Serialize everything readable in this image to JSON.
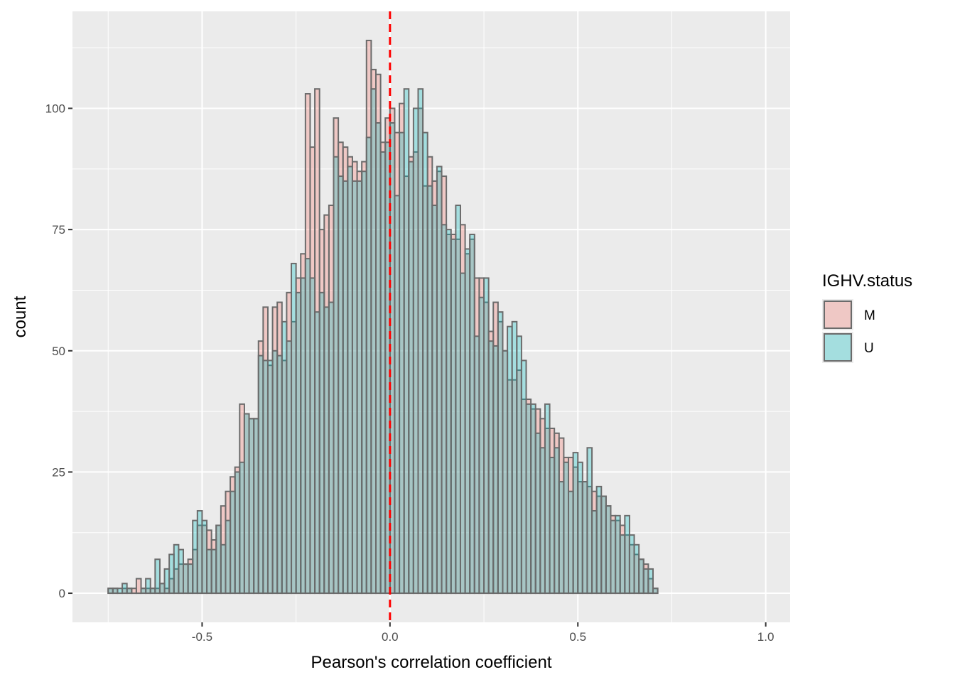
{
  "chart_data": {
    "type": "bar",
    "subtype": "overlapping-histogram",
    "title": "",
    "xlabel": "Pearson's correlation coefficient",
    "ylabel": "count",
    "xlim": [
      -0.845,
      1.065
    ],
    "ylim": [
      -6,
      120
    ],
    "x_ticks": [
      -0.5,
      0.0,
      0.5,
      1.0
    ],
    "x_tick_labels": [
      "-0.5",
      "0.0",
      "0.5",
      "1.0"
    ],
    "y_ticks": [
      0,
      25,
      50,
      75,
      100
    ],
    "y_tick_labels": [
      "0",
      "25",
      "50",
      "75",
      "100"
    ],
    "grid": true,
    "bin_start": -0.75,
    "bin_width": 0.0125,
    "reference_line": {
      "x": 0.0,
      "style": "dashed",
      "color": "#ff0000"
    },
    "legend": {
      "title": "IGHV.status",
      "position": "right",
      "entries": [
        {
          "name": "M",
          "fill": "#f8766d"
        },
        {
          "name": "U",
          "fill": "#00bfc4"
        }
      ]
    },
    "series": [
      {
        "name": "M",
        "fill": "#f8766d",
        "values": [
          1,
          1,
          0,
          1,
          1,
          1,
          3,
          1,
          1,
          1,
          1,
          2,
          1,
          3,
          5,
          6,
          6,
          7,
          9,
          14,
          14,
          13,
          11,
          14,
          18,
          21,
          24,
          26,
          39,
          37,
          36,
          36,
          52,
          59,
          47,
          59,
          60,
          48,
          62,
          56,
          65,
          70,
          103,
          92,
          104,
          75,
          78,
          80,
          98,
          93,
          92,
          90,
          89,
          87,
          89,
          114,
          108,
          107,
          93,
          98,
          100,
          95,
          101,
          86,
          90,
          91,
          100,
          84,
          90,
          85,
          87,
          86,
          74,
          74,
          73,
          76,
          70,
          73,
          65,
          65,
          60,
          54,
          60,
          56,
          50,
          44,
          44,
          46,
          40,
          40,
          38,
          38,
          36,
          34,
          34,
          33,
          32,
          28,
          28,
          26,
          23,
          23,
          22,
          21,
          20,
          20,
          18,
          16,
          15,
          14,
          12,
          10,
          8,
          7,
          6,
          3,
          1
        ]
      },
      {
        "name": "U",
        "fill": "#00bfc4",
        "values": [
          1,
          1,
          1,
          2,
          1,
          0,
          0,
          1,
          3,
          1,
          7,
          2,
          5,
          8,
          10,
          9,
          6,
          6,
          15,
          17,
          15,
          9,
          9,
          14,
          10,
          15,
          21,
          25,
          27,
          37,
          36,
          36,
          49,
          48,
          48,
          50,
          49,
          56,
          52,
          68,
          62,
          65,
          69,
          65,
          58,
          62,
          59,
          60,
          90,
          86,
          85,
          88,
          85,
          85,
          87,
          94,
          104,
          97,
          91,
          93,
          97,
          82,
          95,
          104,
          89,
          100,
          104,
          95,
          84,
          80,
          88,
          76,
          75,
          73,
          80,
          66,
          71,
          74,
          53,
          61,
          65,
          52,
          51,
          58,
          50,
          55,
          56,
          53,
          48,
          39,
          39,
          33,
          30,
          39,
          28,
          30,
          23,
          27,
          21,
          29,
          27,
          23,
          30,
          17,
          22,
          20,
          18,
          15,
          16,
          12,
          16,
          12,
          10,
          7,
          5,
          5,
          1
        ]
      }
    ]
  }
}
